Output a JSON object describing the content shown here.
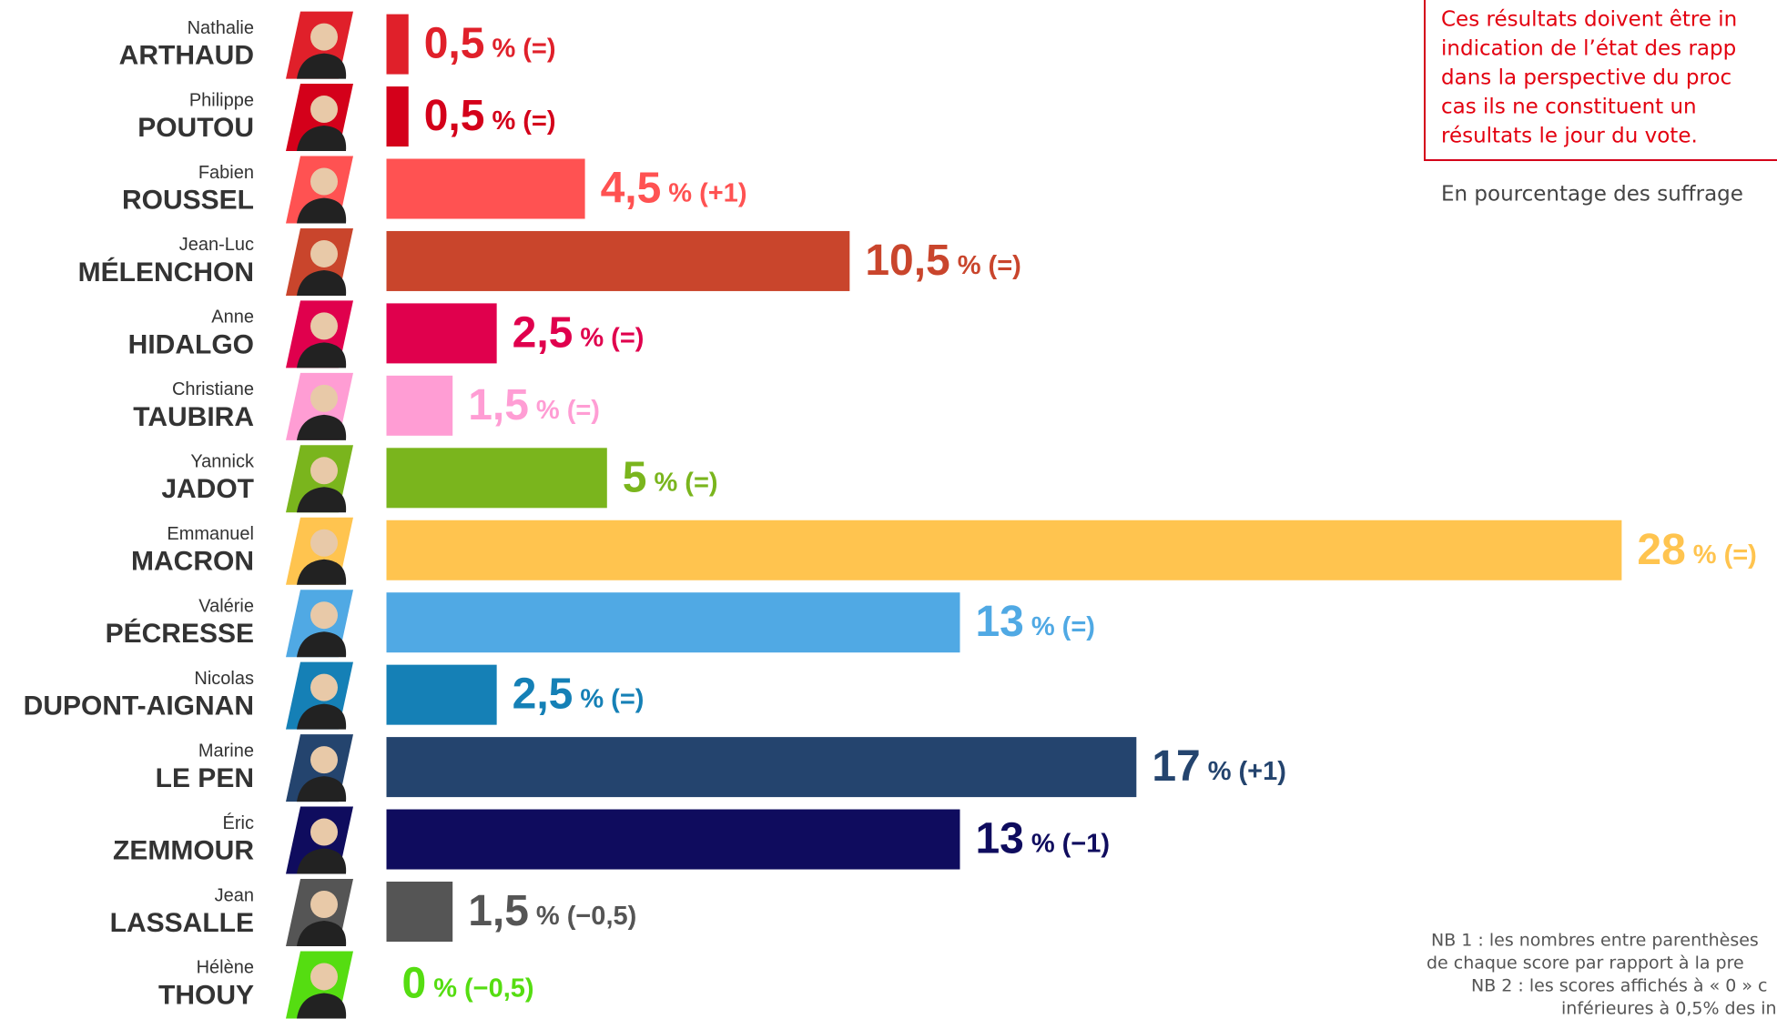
{
  "chart_data": {
    "type": "bar",
    "first_names": [
      "Nathalie",
      "Philippe",
      "Fabien",
      "Jean-Luc",
      "Anne",
      "Christiane",
      "Yannick",
      "Emmanuel",
      "Valérie",
      "Nicolas",
      "Marine",
      "Éric",
      "Jean",
      "Hélène"
    ],
    "categories": [
      "ARTHAUD",
      "POUTOU",
      "ROUSSEL",
      "MÉLENCHON",
      "HIDALGO",
      "TAUBIRA",
      "JADOT",
      "MACRON",
      "PÉCRESSE",
      "DUPONT-AIGNAN",
      "LE PEN",
      "ZEMMOUR",
      "LASSALLE",
      "THOUY"
    ],
    "values": [
      0.5,
      0.5,
      4.5,
      10.5,
      2.5,
      1.5,
      5,
      28,
      13,
      2.5,
      17,
      13,
      1.5,
      0
    ],
    "value_labels": [
      "0,5",
      "0,5",
      "4,5",
      "10,5",
      "2,5",
      "1,5",
      "5",
      "28",
      "13",
      "2,5",
      "17",
      "13",
      "1,5",
      "0"
    ],
    "unit": "%",
    "changes": [
      "(=)",
      "(=)",
      "(+1)",
      "(=)",
      "(=)",
      "(=)",
      "(=)",
      "(=)",
      "(=)",
      "(=)",
      "(+1)",
      "(−1)",
      "(−0,5)",
      "(−0,5)"
    ],
    "colors": [
      "#e0202a",
      "#d4001a",
      "#ff5252",
      "#c9452c",
      "#e0004d",
      "#ff9dd4",
      "#7ab51d",
      "#ffc44f",
      "#50a9e4",
      "#1580b6",
      "#24446e",
      "#0f0c5e",
      "#555555",
      "#55dd11"
    ],
    "note": [
      "Ces résultats doivent être in",
      "indication de l’état des rapp",
      "dans la perspective du proc",
      "cas ils ne constituent un",
      "résultats le jour du vote."
    ],
    "subtitle": "En pourcentage des suffrage",
    "footnotes": [
      "NB 1 : les nombres entre parenthèses",
      "de chaque score par rapport à la pre",
      "NB 2 : les scores affichés à « 0 » c",
      "inférieures à 0,5% des in"
    ]
  }
}
